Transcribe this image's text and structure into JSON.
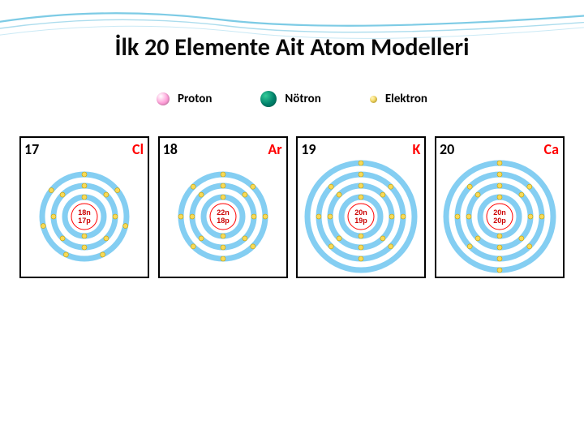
{
  "title": "İlk 20 Elemente Ait Atom Modelleri",
  "colors": {
    "proton": "#ff66cc",
    "neutron": "#008866",
    "electron": "#f7d958",
    "shell": "#6ec6f0",
    "border": "#000000",
    "symbol": "#ff0000",
    "nucleusText": "#cc0000",
    "waveStroke": "#5bb8dd"
  },
  "legend": [
    {
      "label": "Proton",
      "size": 16,
      "fill": "#ff9ed8",
      "gloss": "#ffffff"
    },
    {
      "label": "Nötron",
      "size": 20,
      "fill": "#00806a",
      "gloss": "#33cc99"
    },
    {
      "label": "Elektron",
      "size": 9,
      "fill": "#f7d958",
      "gloss": "#fff4bc"
    }
  ],
  "shellRadii": [
    24,
    38,
    52,
    66
  ],
  "nucleusRadius": 16,
  "atoms": [
    {
      "number": "17",
      "symbol": "Cl",
      "nuc1": "18n",
      "nuc2": "17p",
      "shells": [
        2,
        8,
        7
      ]
    },
    {
      "number": "18",
      "symbol": "Ar",
      "nuc1": "22n",
      "nuc2": "18p",
      "shells": [
        2,
        8,
        8
      ]
    },
    {
      "number": "19",
      "symbol": "K",
      "nuc1": "20n",
      "nuc2": "19p",
      "shells": [
        2,
        8,
        8,
        1
      ]
    },
    {
      "number": "20",
      "symbol": "Ca",
      "nuc1": "20n",
      "nuc2": "20p",
      "shells": [
        2,
        8,
        8,
        2
      ]
    }
  ]
}
